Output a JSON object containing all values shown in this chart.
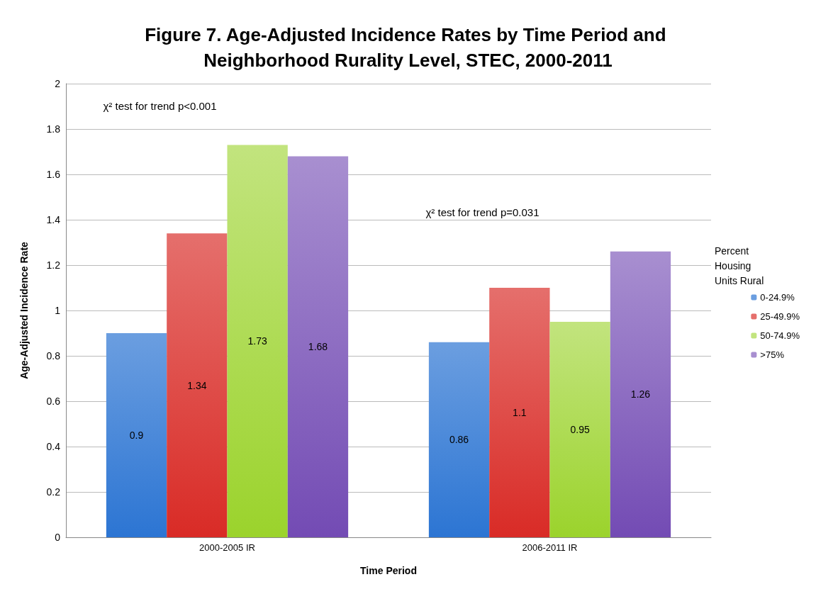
{
  "chart_data": {
    "type": "bar",
    "title": "Figure 7. Age-Adjusted Incidence Rates by Time Period and Neighborhood Rurality Level, STEC, 2000-2011",
    "xlabel": "Time Period",
    "ylabel": "Age-Adjusted Incidence Rate",
    "legend_title": "Percent Housing Units Rural",
    "categories": [
      "2000-2005 IR",
      "2006-2011 IR"
    ],
    "series": [
      {
        "name": "0-24.9%",
        "color": "#6b9ee0",
        "values": [
          0.9,
          0.86
        ]
      },
      {
        "name": "25-49.9%",
        "color": "#e56f6c",
        "values": [
          1.34,
          1.1
        ]
      },
      {
        "name": "50-74.9%",
        "color": "#c2e47e",
        "values": [
          1.73,
          0.95
        ]
      },
      {
        "name": ">75%",
        "color": "#a88fd0",
        "values": [
          1.68,
          1.26
        ]
      }
    ],
    "ylim": [
      0,
      2
    ],
    "yticks": [
      0,
      0.2,
      0.4,
      0.6,
      0.8,
      1,
      1.2,
      1.4,
      1.6,
      1.8,
      2
    ],
    "grid": "y",
    "legend": "right",
    "data_labels": true,
    "annotations": [
      "χ² test for trend p<0.001",
      "χ² test for trend p=0.031"
    ]
  }
}
